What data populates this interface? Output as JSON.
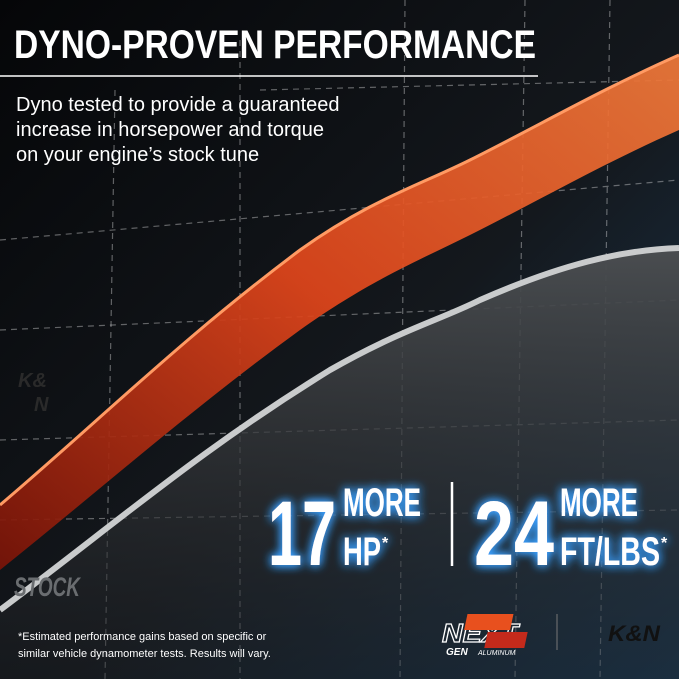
{
  "header": {
    "title": "DYNO-PROVEN PERFORMANCE",
    "subtitle_lines": [
      "Dyno tested to provide a guaranteed",
      "increase in horsepower and torque",
      "on your engine’s stock tune"
    ]
  },
  "graphic": {
    "brand_lines": [
      "K&",
      "N"
    ],
    "stock_label": "STOCK"
  },
  "stats": [
    {
      "number": "17",
      "more": "MORE",
      "unit": "HP",
      "mark": "*"
    },
    {
      "number": "24",
      "more": "MORE",
      "unit": "FT/LBS",
      "mark": "*"
    }
  ],
  "footer": {
    "footnote_lines": [
      "*Estimated performance gains based on specific or",
      "similar vehicle dynamometer tests. Results will vary."
    ],
    "next_logo": {
      "word": "NEXT",
      "gen": "GEN",
      "material": "ALUMINUM"
    },
    "brand_logo": "K&N"
  }
}
